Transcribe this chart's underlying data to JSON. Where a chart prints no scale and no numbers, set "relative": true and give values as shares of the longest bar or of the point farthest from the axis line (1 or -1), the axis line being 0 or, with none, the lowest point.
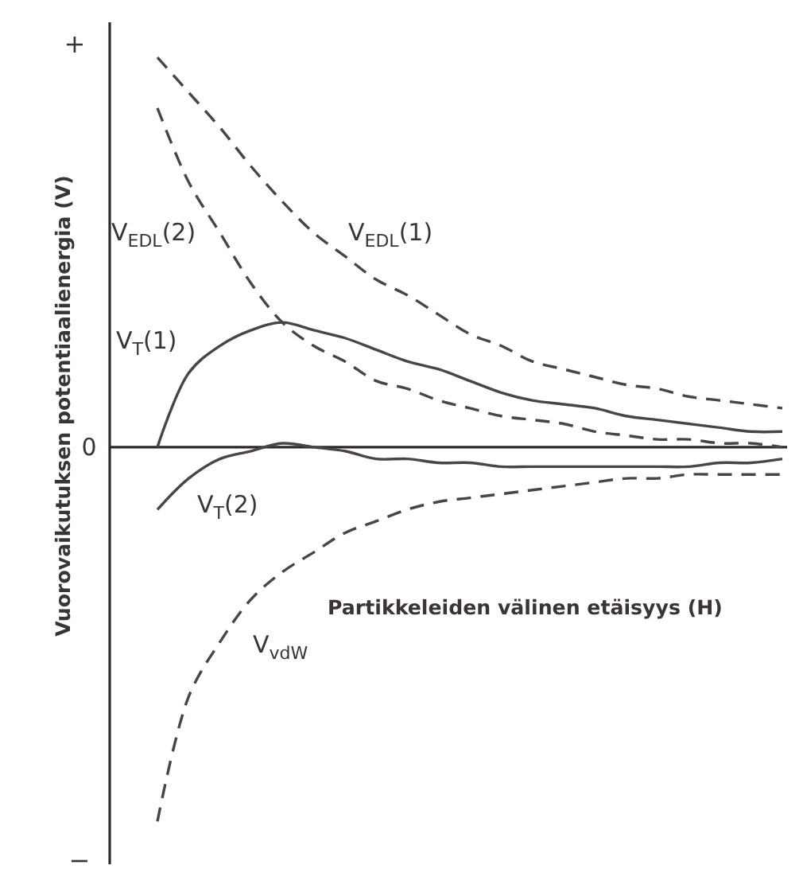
{
  "chart_data": {
    "type": "line",
    "relative": true,
    "xlabel": "Partikkeleiden välinen etäisyys (H)",
    "ylabel": "Vuorovaikutuksen potentiaalienergia (V)",
    "annotations": [
      "+",
      "0",
      "−"
    ],
    "categories": [
      null,
      null,
      null,
      null,
      null,
      null,
      null,
      null,
      null,
      null,
      null,
      null,
      null,
      null,
      null,
      null,
      null,
      null,
      null,
      null,
      null
    ],
    "series": [
      {
        "name": "V$_{EDL}$(1)",
        "color": "#4a4444",
        "line_style": "dashed",
        "values": [
          1.0,
          0.91,
          0.82,
          0.72,
          0.63,
          0.55,
          0.49,
          0.43,
          0.39,
          0.34,
          0.29,
          0.26,
          0.22,
          0.2,
          0.18,
          0.16,
          0.15,
          0.13,
          0.12,
          0.11,
          0.1
        ]
      },
      {
        "name": "V$_{EDL}$(2)",
        "color": "#4a4444",
        "line_style": "dashed",
        "values": [
          0.87,
          0.68,
          0.55,
          0.42,
          0.32,
          0.26,
          0.22,
          0.17,
          0.15,
          0.12,
          0.1,
          0.08,
          0.07,
          0.06,
          0.04,
          0.03,
          0.02,
          0.02,
          0.01,
          0.01,
          0.0
        ]
      },
      {
        "name": "V$_{T}$(1)",
        "color": "#4a4444",
        "line_style": "solid",
        "values": [
          0.0,
          0.19,
          0.26,
          0.3,
          0.32,
          0.3,
          0.28,
          0.25,
          0.22,
          0.2,
          0.17,
          0.14,
          0.12,
          0.11,
          0.1,
          0.08,
          0.07,
          0.06,
          0.05,
          0.04,
          0.04
        ]
      },
      {
        "name": "V$_{T}$(2)",
        "color": "#4a4444",
        "line_style": "solid",
        "values": [
          -0.16,
          -0.08,
          -0.03,
          -0.01,
          0.01,
          0.0,
          -0.01,
          -0.03,
          -0.03,
          -0.04,
          -0.04,
          -0.05,
          -0.05,
          -0.05,
          -0.05,
          -0.05,
          -0.05,
          -0.05,
          -0.04,
          -0.04,
          -0.03
        ]
      },
      {
        "name": "V$_{vdW}$",
        "color": "#4a4444",
        "line_style": "dashed",
        "values": [
          -0.96,
          -0.64,
          -0.5,
          -0.39,
          -0.32,
          -0.27,
          -0.22,
          -0.19,
          -0.16,
          -0.14,
          -0.13,
          -0.12,
          -0.11,
          -0.1,
          -0.09,
          -0.08,
          -0.08,
          -0.07,
          -0.07,
          -0.07,
          -0.07
        ]
      }
    ]
  }
}
